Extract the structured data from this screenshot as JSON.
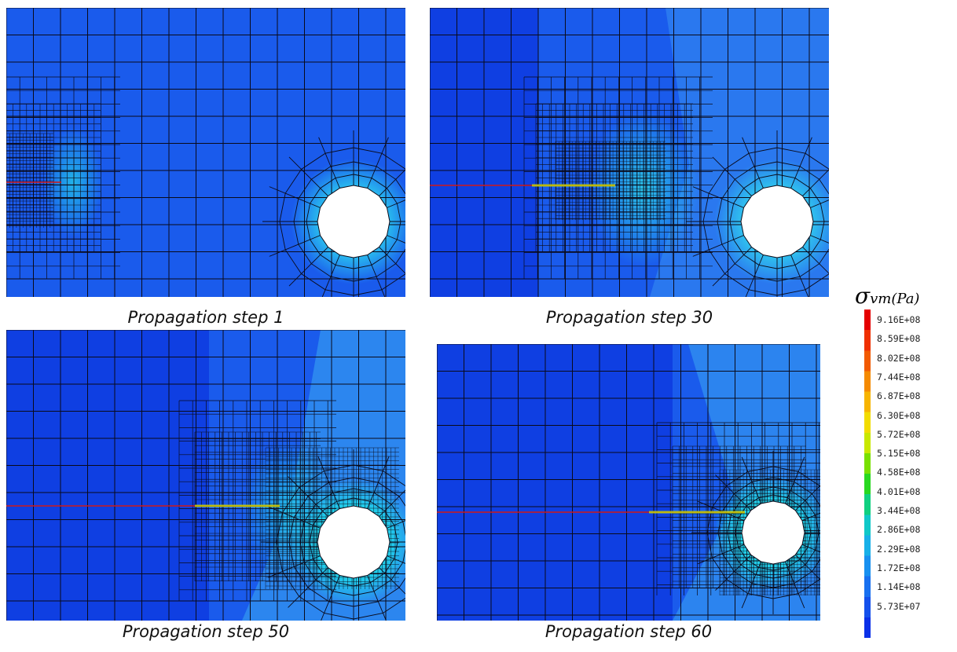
{
  "captions": [
    "Propagation step 1",
    "Propagation step 30",
    "Propagation step 50",
    "Propagation step 60"
  ],
  "legend": {
    "symbol": "σ",
    "subscript": "vm(Pa)",
    "values": [
      "9.16E+08",
      "8.59E+08",
      "8.02E+08",
      "7.44E+08",
      "6.87E+08",
      "6.30E+08",
      "5.72E+08",
      "5.15E+08",
      "4.58E+08",
      "4.01E+08",
      "3.44E+08",
      "2.86E+08",
      "2.29E+08",
      "1.72E+08",
      "1.14E+08",
      "5.73E+07"
    ],
    "colors": [
      "#e50000",
      "#f03000",
      "#f25a00",
      "#f58a00",
      "#f7b400",
      "#f2dc00",
      "#c8e800",
      "#78e000",
      "#28d820",
      "#10d080",
      "#10c8c8",
      "#18b0e8",
      "#1890f0",
      "#1870f0",
      "#1450ec",
      "#0a30e8"
    ]
  }
}
